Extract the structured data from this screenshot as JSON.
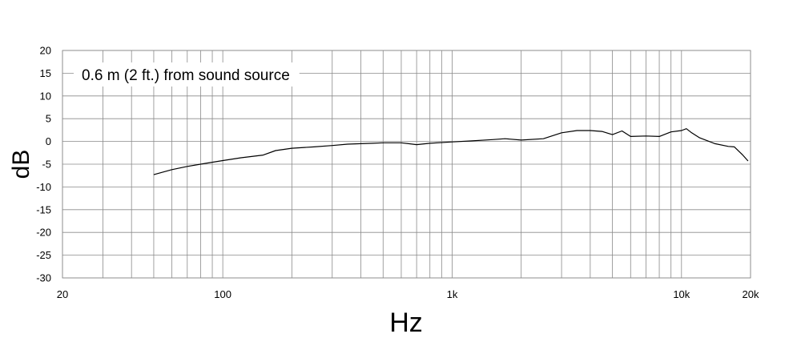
{
  "chart_data": {
    "type": "line",
    "annotation": "0.6 m (2 ft.) from sound source",
    "xlabel": "Hz",
    "ylabel": "dB",
    "x_scale": "log",
    "xlim": [
      20,
      20000
    ],
    "ylim": [
      -30,
      20
    ],
    "grid": true,
    "x_tick_labels": [
      {
        "value": 20,
        "label": "20"
      },
      {
        "value": 100,
        "label": "100"
      },
      {
        "value": 1000,
        "label": "1k"
      },
      {
        "value": 10000,
        "label": "10k"
      },
      {
        "value": 20000,
        "label": "20k"
      }
    ],
    "y_ticks": [
      20,
      15,
      10,
      5,
      0,
      -5,
      -10,
      -15,
      -20,
      -25,
      -30
    ],
    "y_tick_labels": [
      "20",
      "15",
      "10",
      "5",
      "0",
      "-5",
      "-10",
      "-15",
      "-20",
      "-25",
      "-30"
    ],
    "series": [
      {
        "x": [
          50,
          60,
          70,
          80,
          100,
          120,
          150,
          170,
          200,
          250,
          300,
          350,
          400,
          450,
          500,
          600,
          700,
          800,
          1000,
          1200,
          1500,
          1700,
          2000,
          2500,
          3000,
          3500,
          4000,
          4500,
          5000,
          5500,
          6000,
          7000,
          8000,
          9000,
          10000,
          10500,
          11000,
          12000,
          14000,
          16000,
          17000,
          18500,
          19500
        ],
        "y": [
          -7.3,
          -6.2,
          -5.5,
          -5.0,
          -4.2,
          -3.6,
          -3.0,
          -2.0,
          -1.5,
          -1.2,
          -0.9,
          -0.6,
          -0.5,
          -0.4,
          -0.3,
          -0.3,
          -0.7,
          -0.4,
          -0.1,
          0.1,
          0.4,
          0.6,
          0.3,
          0.6,
          1.9,
          2.4,
          2.4,
          2.2,
          1.5,
          2.3,
          1.1,
          1.2,
          1.1,
          2.1,
          2.4,
          2.8,
          2.0,
          0.8,
          -0.5,
          -1.1,
          -1.2,
          -3.0,
          -4.3
        ]
      }
    ]
  },
  "colors": {
    "grid": "#8a8a8a",
    "line": "#000000",
    "background": "#ffffff"
  }
}
